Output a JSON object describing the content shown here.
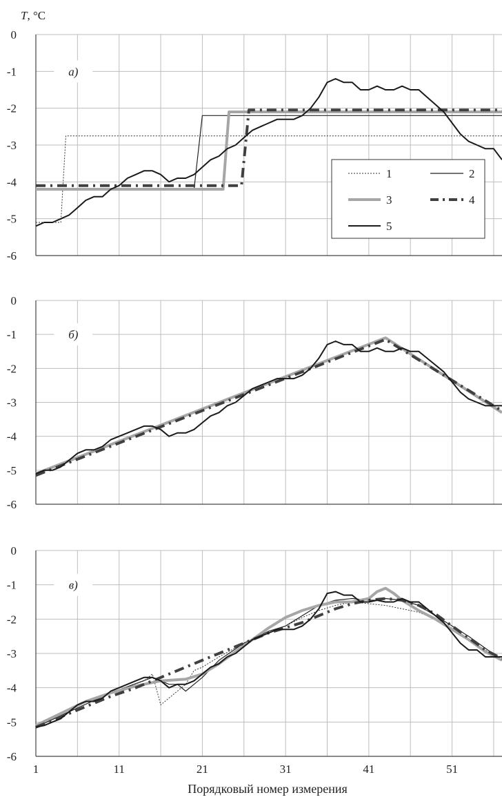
{
  "chart_data": {
    "type": "line",
    "y_axis_label": "T, °C",
    "x_axis_label": "Порядковый номер измерения",
    "x_tick_labels": [
      "1",
      "11",
      "21",
      "31",
      "41",
      "51"
    ],
    "x_range": [
      1,
      57
    ],
    "y_range": [
      -6,
      0
    ],
    "y_tick_labels": [
      "0",
      "-1",
      "-2",
      "-3",
      "-4",
      "-5",
      "-6"
    ],
    "grid": true,
    "legend": {
      "placement": "inside panel a), right",
      "entries": [
        {
          "label": "1",
          "style": "thin dotted dark line"
        },
        {
          "label": "2",
          "style": "thin solid dark line"
        },
        {
          "label": "3",
          "style": "thick solid light gray line"
        },
        {
          "label": "4",
          "style": "thick dash-dot dark gray line"
        },
        {
          "label": "5",
          "style": "medium solid black line"
        }
      ]
    },
    "panels": [
      {
        "label": "а)",
        "series": [
          {
            "name": "1",
            "x": [
              1,
              4,
              4.6,
              7,
              57
            ],
            "y": [
              -5.1,
              -5.1,
              -2.75,
              -2.75,
              -2.75
            ]
          },
          {
            "name": "2",
            "x": [
              1,
              20,
              21,
              23,
              57
            ],
            "y": [
              -4.2,
              -4.2,
              -2.2,
              -2.2,
              -2.2
            ]
          },
          {
            "name": "3",
            "x": [
              1,
              23.5,
              24.2,
              57
            ],
            "y": [
              -4.2,
              -4.2,
              -2.1,
              -2.1
            ]
          },
          {
            "name": "4",
            "x": [
              1,
              25.7,
              26.6,
              57
            ],
            "y": [
              -4.1,
              -4.1,
              -2.05,
              -2.05
            ]
          },
          {
            "name": "5",
            "x": [
              1,
              2,
              3,
              4,
              5,
              6,
              7,
              8,
              9,
              10,
              11,
              12,
              13,
              14,
              15,
              16,
              17,
              18,
              19,
              20,
              21,
              22,
              23,
              24,
              25,
              26,
              27,
              28,
              29,
              30,
              31,
              32,
              33,
              34,
              35,
              36,
              37,
              38,
              39,
              40,
              41,
              42,
              43,
              44,
              45,
              46,
              47,
              48,
              49,
              50,
              51,
              52,
              53,
              54,
              55,
              56,
              57
            ],
            "y": [
              -5.2,
              -5.1,
              -5.1,
              -5.0,
              -4.9,
              -4.7,
              -4.5,
              -4.4,
              -4.4,
              -4.2,
              -4.1,
              -3.9,
              -3.8,
              -3.7,
              -3.7,
              -3.8,
              -4.0,
              -3.9,
              -3.9,
              -3.8,
              -3.6,
              -3.4,
              -3.3,
              -3.1,
              -3.0,
              -2.8,
              -2.6,
              -2.5,
              -2.4,
              -2.3,
              -2.3,
              -2.3,
              -2.2,
              -2.0,
              -1.7,
              -1.3,
              -1.2,
              -1.3,
              -1.3,
              -1.5,
              -1.5,
              -1.4,
              -1.5,
              -1.5,
              -1.4,
              -1.5,
              -1.5,
              -1.7,
              -1.9,
              -2.1,
              -2.4,
              -2.7,
              -2.9,
              -3.0,
              -3.1,
              -3.1,
              -3.4
            ]
          }
        ]
      },
      {
        "label": "б)",
        "series": [
          {
            "name": "3",
            "x": [
              1,
              43,
              57
            ],
            "y": [
              -5.1,
              -1.1,
              -3.3
            ]
          },
          {
            "name": "4",
            "x": [
              1,
              43,
              57
            ],
            "y": [
              -5.15,
              -1.15,
              -3.25
            ]
          },
          {
            "name": "5",
            "x": [
              1,
              2,
              3,
              4,
              5,
              6,
              7,
              8,
              9,
              10,
              11,
              12,
              13,
              14,
              15,
              16,
              17,
              18,
              19,
              20,
              21,
              22,
              23,
              24,
              25,
              26,
              27,
              28,
              29,
              30,
              31,
              32,
              33,
              34,
              35,
              36,
              37,
              38,
              39,
              40,
              41,
              42,
              43,
              44,
              45,
              46,
              47,
              48,
              49,
              50,
              51,
              52,
              53,
              54,
              55,
              56,
              57
            ],
            "y": [
              -5.1,
              -5.0,
              -5.0,
              -4.9,
              -4.7,
              -4.5,
              -4.4,
              -4.4,
              -4.3,
              -4.1,
              -4.0,
              -3.9,
              -3.8,
              -3.7,
              -3.7,
              -3.8,
              -4.0,
              -3.9,
              -3.9,
              -3.8,
              -3.6,
              -3.4,
              -3.3,
              -3.1,
              -3.0,
              -2.8,
              -2.6,
              -2.5,
              -2.4,
              -2.3,
              -2.3,
              -2.3,
              -2.2,
              -2.0,
              -1.7,
              -1.3,
              -1.2,
              -1.3,
              -1.3,
              -1.5,
              -1.5,
              -1.4,
              -1.5,
              -1.5,
              -1.4,
              -1.5,
              -1.5,
              -1.7,
              -1.9,
              -2.1,
              -2.4,
              -2.7,
              -2.9,
              -3.0,
              -3.1,
              -3.1,
              -3.1
            ]
          }
        ]
      },
      {
        "label": "в)",
        "series": [
          {
            "name": "1",
            "x": [
              1,
              5,
              10,
              14,
              15,
              16,
              17,
              19,
              20,
              21,
              23,
              26,
              29,
              31,
              33,
              35,
              37,
              39,
              41,
              43,
              45,
              47,
              49,
              51,
              53,
              55,
              57
            ],
            "y": [
              -5.15,
              -4.7,
              -4.15,
              -3.8,
              -3.6,
              -4.5,
              -4.3,
              -3.9,
              -3.5,
              -3.4,
              -3.1,
              -2.7,
              -2.4,
              -2.2,
              -1.95,
              -1.75,
              -1.6,
              -1.5,
              -1.55,
              -1.6,
              -1.7,
              -1.8,
              -2.0,
              -2.3,
              -2.6,
              -2.9,
              -3.2
            ]
          },
          {
            "name": "2",
            "x": [
              1,
              5,
              10,
              15,
              16,
              17,
              18,
              19,
              20,
              21,
              23,
              26,
              29,
              31,
              33,
              35,
              37,
              39,
              41,
              42,
              43,
              45,
              47,
              49,
              51,
              53,
              55,
              57
            ],
            "y": [
              -5.15,
              -4.7,
              -4.15,
              -3.7,
              -3.8,
              -3.9,
              -3.9,
              -4.1,
              -3.9,
              -3.7,
              -3.2,
              -2.7,
              -2.35,
              -2.2,
              -1.9,
              -1.6,
              -1.45,
              -1.4,
              -1.45,
              -1.45,
              -1.4,
              -1.45,
              -1.6,
              -1.9,
              -2.2,
              -2.5,
              -2.85,
              -3.2
            ]
          },
          {
            "name": "3",
            "x": [
              1,
              4,
              7,
              10,
              13,
              16,
              19,
              21,
              23,
              25,
              27,
              29,
              31,
              33,
              35,
              37,
              39,
              41,
              42,
              43,
              44,
              45,
              47,
              49,
              51,
              53,
              55,
              57
            ],
            "y": [
              -5.1,
              -4.75,
              -4.4,
              -4.15,
              -3.95,
              -3.8,
              -3.75,
              -3.6,
              -3.3,
              -2.95,
              -2.6,
              -2.25,
              -1.95,
              -1.75,
              -1.6,
              -1.5,
              -1.5,
              -1.4,
              -1.2,
              -1.1,
              -1.25,
              -1.45,
              -1.75,
              -2.0,
              -2.3,
              -2.6,
              -2.95,
              -3.2
            ]
          },
          {
            "name": "4",
            "x": [
              1,
              4,
              7,
              10,
              13,
              16,
              19,
              21,
              23,
              25,
              27,
              29,
              31,
              33,
              35,
              37,
              39,
              41,
              43,
              45,
              47,
              49,
              51,
              53,
              55,
              57
            ],
            "y": [
              -5.15,
              -4.85,
              -4.55,
              -4.25,
              -4.0,
              -3.7,
              -3.4,
              -3.2,
              -3.0,
              -2.8,
              -2.6,
              -2.4,
              -2.25,
              -2.1,
              -1.9,
              -1.7,
              -1.55,
              -1.45,
              -1.4,
              -1.45,
              -1.6,
              -1.85,
              -2.2,
              -2.55,
              -2.9,
              -3.15
            ]
          },
          {
            "name": "5",
            "x": [
              1,
              2,
              3,
              4,
              5,
              6,
              7,
              8,
              9,
              10,
              11,
              12,
              13,
              14,
              15,
              16,
              17,
              18,
              19,
              20,
              21,
              22,
              23,
              24,
              25,
              26,
              27,
              28,
              29,
              30,
              31,
              32,
              33,
              34,
              35,
              36,
              37,
              38,
              39,
              40,
              41,
              42,
              43,
              44,
              45,
              46,
              47,
              48,
              49,
              50,
              51,
              52,
              53,
              54,
              55,
              56,
              57
            ],
            "y": [
              -5.15,
              -5.1,
              -5.0,
              -4.9,
              -4.7,
              -4.5,
              -4.4,
              -4.4,
              -4.3,
              -4.1,
              -4.0,
              -3.9,
              -3.8,
              -3.7,
              -3.7,
              -3.8,
              -4.0,
              -3.9,
              -3.9,
              -3.8,
              -3.6,
              -3.4,
              -3.3,
              -3.1,
              -3.0,
              -2.8,
              -2.6,
              -2.5,
              -2.4,
              -2.3,
              -2.3,
              -2.3,
              -2.2,
              -2.0,
              -1.7,
              -1.25,
              -1.2,
              -1.3,
              -1.3,
              -1.5,
              -1.5,
              -1.45,
              -1.5,
              -1.5,
              -1.4,
              -1.5,
              -1.5,
              -1.7,
              -1.9,
              -2.1,
              -2.4,
              -2.7,
              -2.9,
              -2.9,
              -3.1,
              -3.1,
              -3.1
            ]
          }
        ]
      }
    ]
  }
}
